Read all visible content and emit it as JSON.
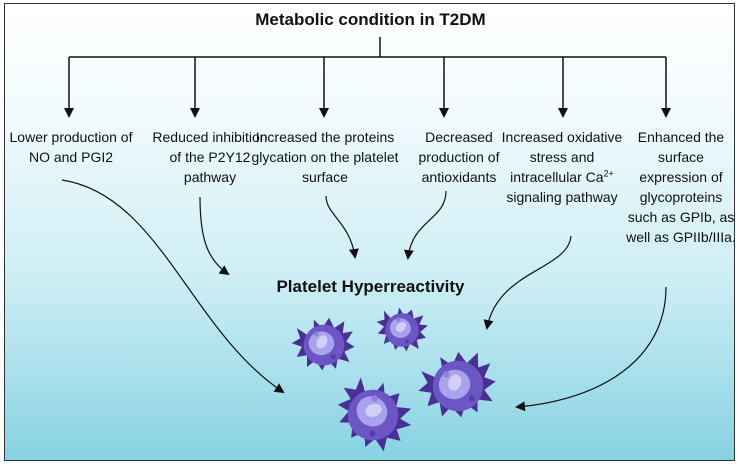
{
  "title": "Metabolic condition in T2DM",
  "causes": [
    "Lower production of NO and PGI2",
    "Reduced inhibition of the P2Y12 pathway",
    "Increased the proteins glycation on the platelet surface",
    "Decreased production of antioxidants",
    {
      "pre": "Increased oxidative stress and intracellular Ca",
      "sup": "2+",
      "post": " signaling pathway"
    },
    "Enhanced the surface expression of glycoproteins such as GPIb, as well as GPIIb/IIIa."
  ],
  "result": "Platelet Hyperreactivity",
  "colors": {
    "platelet_body": "#6b56c4",
    "platelet_edge": "#4a2f96",
    "platelet_nucleus": "#a9a2ec",
    "platelet_core": "#d4cdf8",
    "bg_bottom": "#87d2e2"
  },
  "icons": [
    "platelet-icon"
  ]
}
